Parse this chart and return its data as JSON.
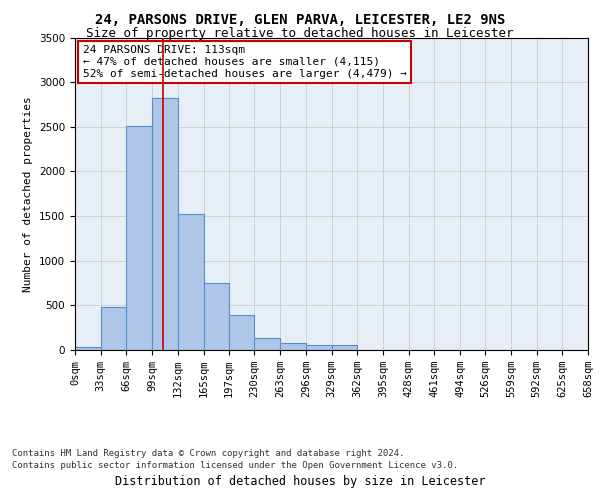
{
  "title_line1": "24, PARSONS DRIVE, GLEN PARVA, LEICESTER, LE2 9NS",
  "title_line2": "Size of property relative to detached houses in Leicester",
  "xlabel": "Distribution of detached houses by size in Leicester",
  "ylabel": "Number of detached properties",
  "footnote1": "Contains HM Land Registry data © Crown copyright and database right 2024.",
  "footnote2": "Contains public sector information licensed under the Open Government Licence v3.0.",
  "annotation_title": "24 PARSONS DRIVE: 113sqm",
  "annotation_line2": "← 47% of detached houses are smaller (4,115)",
  "annotation_line3": "52% of semi-detached houses are larger (4,479) →",
  "bar_edges": [
    0,
    33,
    66,
    99,
    132,
    165,
    197,
    230,
    263,
    296,
    329,
    362,
    395,
    428,
    461,
    494,
    526,
    559,
    592,
    625,
    658
  ],
  "bar_heights": [
    30,
    480,
    2510,
    2820,
    1520,
    750,
    390,
    140,
    75,
    55,
    55,
    0,
    0,
    0,
    0,
    0,
    0,
    0,
    0,
    0
  ],
  "bar_color": "#aec6e8",
  "bar_edge_color": "#5591c8",
  "bar_linewidth": 0.8,
  "vline_x": 113,
  "vline_color": "#cc0000",
  "ylim": [
    0,
    3500
  ],
  "yticks": [
    0,
    500,
    1000,
    1500,
    2000,
    2500,
    3000,
    3500
  ],
  "grid_color": "#cccccc",
  "plot_bg_color": "#e8eef5",
  "annotation_box_color": "#ffffff",
  "annotation_box_edgecolor": "#cc0000",
  "title_fontsize": 10,
  "subtitle_fontsize": 9,
  "xlabel_fontsize": 8.5,
  "ylabel_fontsize": 8,
  "tick_fontsize": 7.5,
  "annotation_fontsize": 8,
  "footnote_fontsize": 6.5
}
